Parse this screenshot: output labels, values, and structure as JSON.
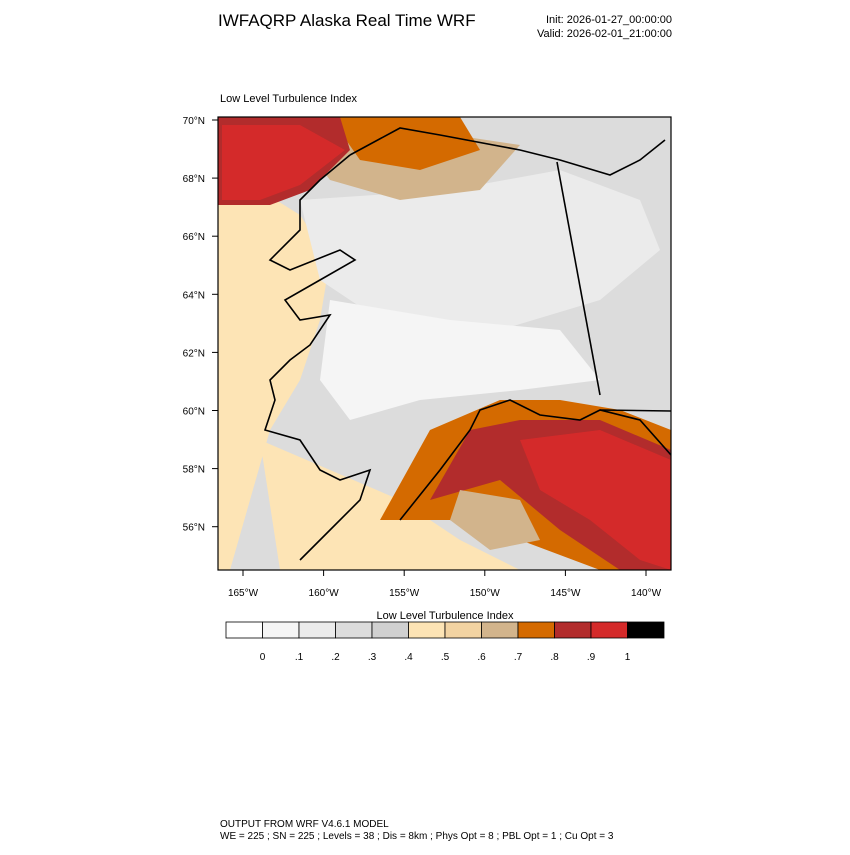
{
  "header": {
    "title": "IWFAQRP Alaska Real Time WRF",
    "init": "Init: 2026-01-27_00:00:00",
    "valid": "Valid: 2026-02-01_21:00:00"
  },
  "map": {
    "title": "Low Level Turbulence Index",
    "lat_labels": [
      "70°N",
      "68°N",
      "66°N",
      "64°N",
      "62°N",
      "60°N",
      "58°N",
      "56°N"
    ],
    "lon_labels": [
      "165°W",
      "160°W",
      "155°W",
      "150°W",
      "145°W",
      "140°W"
    ]
  },
  "colorbar": {
    "title": "Low Level Turbulence Index",
    "labels": [
      "0",
      ".1",
      ".2",
      ".3",
      ".4",
      ".5",
      ".6",
      ".7",
      ".8",
      ".9",
      "1"
    ],
    "colors": [
      "#ffffff",
      "#f5f5f5",
      "#ebebeb",
      "#dcdcdc",
      "#d0d0d0",
      "#fde4b5",
      "#f2d3a2",
      "#d2b48c",
      "#d46a00",
      "#b22c2c",
      "#d42a2a",
      "#000000"
    ]
  },
  "footer": {
    "line1": "OUTPUT FROM WRF V4.6.1 MODEL",
    "line2": "WE = 225 ; SN = 225 ; Levels = 38 ; Dis = 8km ; Phys Opt = 8 ; PBL Opt = 1 ; Cu Opt = 3"
  }
}
